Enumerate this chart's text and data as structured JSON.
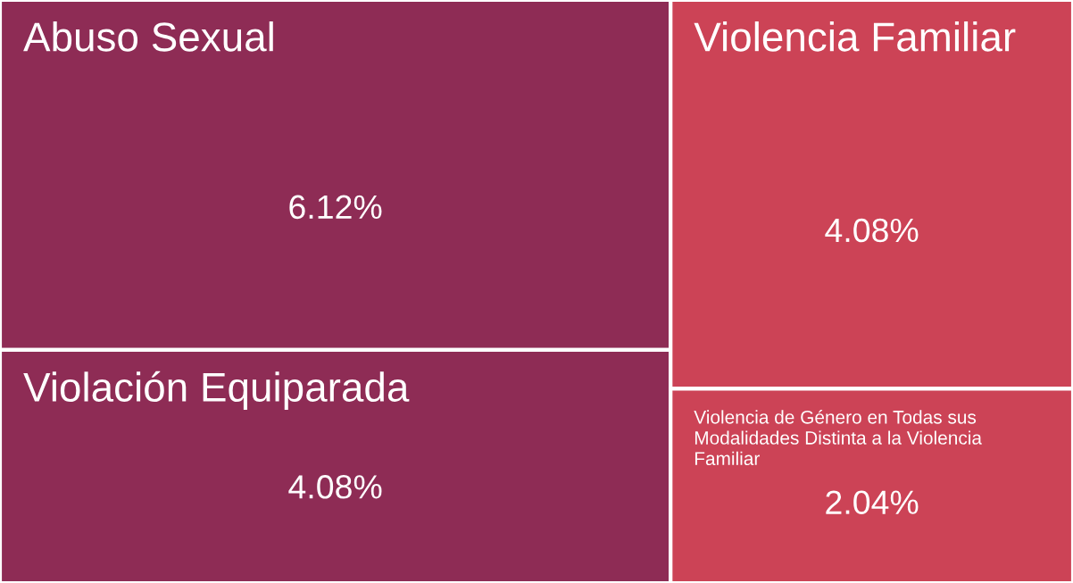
{
  "chart_data": {
    "type": "other",
    "categories": [
      "Abuso Sexual",
      "Violación Equiparada",
      "Violencia Familiar",
      "Violencia de Género en Todas sus Modalidades Distinta a la Violencia Familiar"
    ],
    "values": [
      6.12,
      4.08,
      4.08,
      2.04
    ],
    "value_labels": [
      "6.12%",
      "4.08%",
      "4.08%",
      "2.04%"
    ],
    "colors": [
      "#8e2c55",
      "#8e2c55",
      "#cc4356",
      "#cc4356"
    ]
  }
}
